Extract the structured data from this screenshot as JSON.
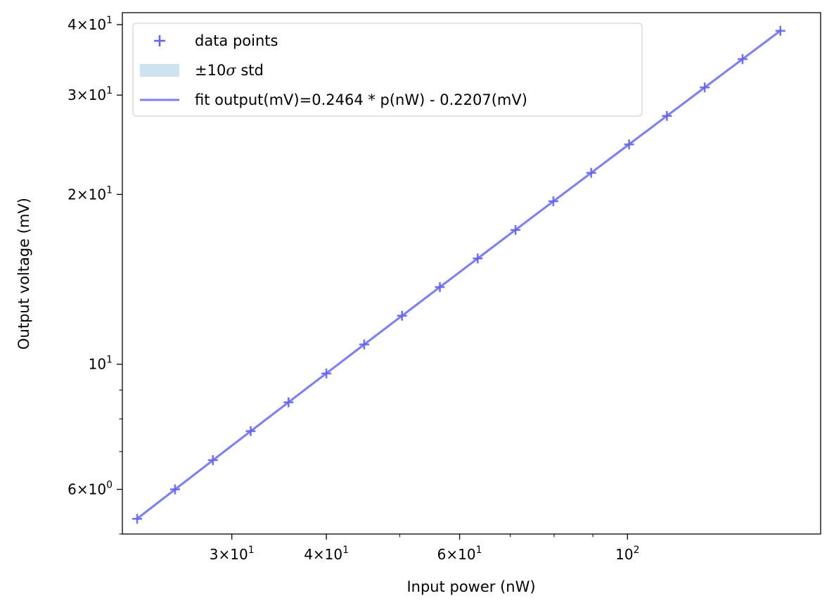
{
  "chart_data": {
    "type": "scatter",
    "xlabel": "Input power (nW)",
    "ylabel": "Output voltage (mV)",
    "xscale": "log",
    "yscale": "log",
    "xlim": [
      21.5,
      180
    ],
    "ylim": [
      5.0,
      42.0
    ],
    "x_ticks": [
      {
        "value": 30,
        "base": "3",
        "exp": "1"
      },
      {
        "value": 40,
        "base": "4",
        "exp": "1"
      },
      {
        "value": 60,
        "base": "6",
        "exp": "1"
      },
      {
        "value": 100,
        "base": "",
        "exp": "2"
      }
    ],
    "x_minor_ticks": [
      50,
      70,
      80,
      90
    ],
    "y_ticks": [
      {
        "value": 6,
        "base": "6",
        "exp": "0"
      },
      {
        "value": 10,
        "base": "",
        "exp": "1"
      },
      {
        "value": 20,
        "base": "2",
        "exp": "1"
      },
      {
        "value": 30,
        "base": "3",
        "exp": "1"
      },
      {
        "value": 40,
        "base": "4",
        "exp": "1"
      }
    ],
    "y_minor_ticks": [
      5,
      7,
      8,
      9
    ],
    "grid": false,
    "legend_position": "top-left",
    "legend": [
      {
        "type": "marker",
        "label": "data points"
      },
      {
        "type": "band",
        "label_prefix": "±10",
        "label_symbol": "σ",
        "label_suffix": " std"
      },
      {
        "type": "line",
        "label": "fit output(mV)=0.2464 * p(nW) - 0.2207(mV)"
      }
    ],
    "fit": {
      "slope": 0.2464,
      "intercept": -0.2207
    },
    "colors": {
      "points": "#6464f0",
      "fit_line": "#7f7ff5",
      "band": "#cde3ef"
    },
    "series": [
      {
        "x": [
          22.49,
          25.24,
          28.32,
          31.77,
          35.65,
          40.0,
          44.88,
          50.36,
          56.5,
          63.4,
          71.13,
          79.81,
          89.55,
          100.48,
          112.74,
          126.5,
          141.93,
          159.25
        ],
        "y": [
          5.32,
          6.0,
          6.76,
          7.61,
          8.56,
          9.63,
          10.84,
          12.19,
          13.7,
          15.4,
          17.3,
          19.45,
          21.84,
          24.53,
          27.56,
          30.95,
          34.75,
          39.0
        ]
      }
    ]
  }
}
